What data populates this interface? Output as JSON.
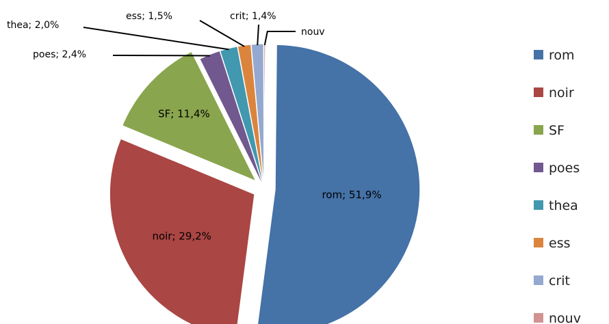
{
  "chart_data": {
    "type": "pie",
    "legend_position": "right",
    "slices": [
      {
        "label": "rom",
        "value": 51.9,
        "value_label": "51,9%",
        "color": "#4572A7",
        "exploded": true
      },
      {
        "label": "noir",
        "value": 29.2,
        "value_label": "29,2%",
        "color": "#AA4643",
        "exploded": true
      },
      {
        "label": "SF",
        "value": 11.4,
        "value_label": "11,4%",
        "color": "#89A54E",
        "exploded": true
      },
      {
        "label": "poes",
        "value": 2.4,
        "value_label": "2,4%",
        "color": "#71588F",
        "exploded": false
      },
      {
        "label": "thea",
        "value": 2.0,
        "value_label": "2,0%",
        "color": "#4198AF",
        "exploded": false
      },
      {
        "label": "ess",
        "value": 1.5,
        "value_label": "1,5%",
        "color": "#DB843D",
        "exploded": false
      },
      {
        "label": "crit",
        "value": 1.4,
        "value_label": "1,4%",
        "color": "#93A9CF",
        "exploded": false
      },
      {
        "label": "nouv",
        "value": 0.2,
        "value_label": "",
        "color": "#D19392",
        "exploded": false
      }
    ]
  }
}
